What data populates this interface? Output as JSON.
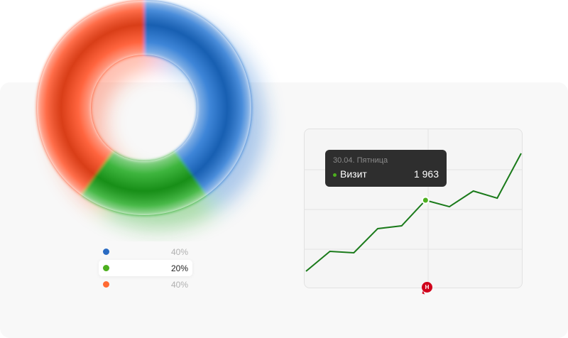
{
  "donut": {
    "segments": [
      {
        "label": "40%",
        "value": 40,
        "color": "#1f6fd1"
      },
      {
        "label": "20%",
        "value": 20,
        "color": "#1aa81a"
      },
      {
        "label": "40%",
        "value": 40,
        "color": "#ff4a1a"
      }
    ],
    "legend_dot_colors": [
      "#2a6bc2",
      "#4caf1e",
      "#ff6a33"
    ],
    "active_index": 1
  },
  "chart_data": {
    "type": "line",
    "title": "",
    "xlabel": "",
    "ylabel": "",
    "grid": true,
    "color": "#1a7a1a",
    "x": [
      1,
      2,
      3,
      4,
      5,
      6,
      7,
      8,
      9,
      10
    ],
    "values": [
      380,
      823,
      792,
      1330,
      1393,
      1963,
      1820,
      2169,
      2010,
      3008
    ],
    "ylim": [
      0,
      3500
    ],
    "highlight_index": 5
  },
  "tooltip": {
    "date": "30.04. Пятница",
    "series_name": "Визит",
    "value": "1 963"
  },
  "marker_badge": {
    "letter": "Н",
    "color": "#d0021b"
  }
}
